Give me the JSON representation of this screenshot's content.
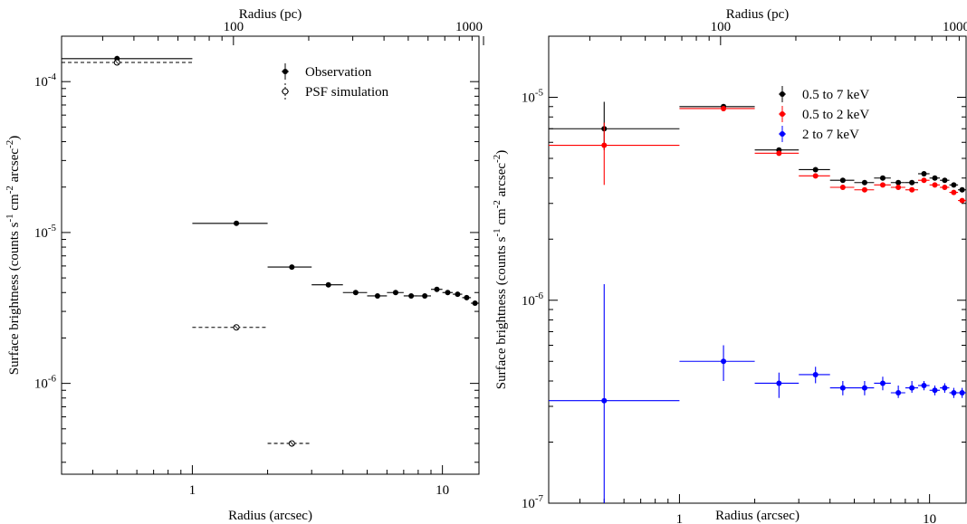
{
  "chart_data": [
    {
      "type": "scatter",
      "xscale": "log",
      "yscale": "log",
      "xlim": [
        0.3,
        14
      ],
      "ylim": [
        2.5e-07,
        0.0002
      ],
      "xlabel": "Radius (arcsec)",
      "ylabel": "Surface brightness (counts s",
      "ylabel_parts": [
        "Surface brightness (counts s",
        "-1",
        " cm",
        "-2",
        " arcsec",
        "-2",
        ")"
      ],
      "top_xlabel": "Radius (pc)",
      "x_ticks": [
        {
          "value": 1,
          "label": "1"
        },
        {
          "value": 10,
          "label": "10"
        }
      ],
      "y_ticks": [
        {
          "value": 1e-06,
          "mant": "10",
          "exp": "-6"
        },
        {
          "value": 1e-05,
          "mant": "10",
          "exp": "-5"
        },
        {
          "value": 0.0001,
          "mant": "10",
          "exp": "-4"
        }
      ],
      "top_ticks": [
        {
          "arcsec": 1.46,
          "label": "100"
        },
        {
          "arcsec": 14.6,
          "label": "1000"
        }
      ],
      "legend_position": "top-right",
      "series": [
        {
          "name": "Observation",
          "color": "#000000",
          "marker": "filled",
          "dashed": false,
          "points": [
            {
              "x": 0.5,
              "xlo": 0.0,
              "xhi": 1.0,
              "y": 0.000142,
              "ylo": 0.000136,
              "yhi": 0.000148
            },
            {
              "x": 1.5,
              "xlo": 1.0,
              "xhi": 2.0,
              "y": 1.15e-05
            },
            {
              "x": 2.5,
              "xlo": 2.0,
              "xhi": 3.0,
              "y": 5.9e-06
            },
            {
              "x": 3.5,
              "xlo": 3.0,
              "xhi": 4.0,
              "y": 4.5e-06
            },
            {
              "x": 4.5,
              "xlo": 4.0,
              "xhi": 5.0,
              "y": 4e-06
            },
            {
              "x": 5.5,
              "xlo": 5.0,
              "xhi": 6.0,
              "y": 3.8e-06
            },
            {
              "x": 6.5,
              "xlo": 6.0,
              "xhi": 7.0,
              "y": 4e-06
            },
            {
              "x": 7.5,
              "xlo": 7.0,
              "xhi": 8.0,
              "y": 3.8e-06
            },
            {
              "x": 8.5,
              "xlo": 8.0,
              "xhi": 9.0,
              "y": 3.8e-06
            },
            {
              "x": 9.5,
              "xlo": 9.0,
              "xhi": 10.0,
              "y": 4.2e-06
            },
            {
              "x": 10.5,
              "xlo": 10.0,
              "xhi": 11.0,
              "y": 4e-06
            },
            {
              "x": 11.5,
              "xlo": 11.0,
              "xhi": 12.0,
              "y": 3.9e-06
            },
            {
              "x": 12.5,
              "xlo": 12.0,
              "xhi": 13.0,
              "y": 3.7e-06
            },
            {
              "x": 13.5,
              "xlo": 13.0,
              "xhi": 14.0,
              "y": 3.4e-06
            }
          ]
        },
        {
          "name": "PSF simulation",
          "color": "#000000",
          "marker": "open",
          "dashed": true,
          "points": [
            {
              "x": 0.5,
              "xlo": 0.0,
              "xhi": 1.0,
              "y": 0.000134,
              "ylo": 0.000128,
              "yhi": 0.00014
            },
            {
              "x": 1.5,
              "xlo": 1.0,
              "xhi": 2.0,
              "y": 2.35e-06,
              "ylo": 2.28e-06,
              "yhi": 2.42e-06
            },
            {
              "x": 2.5,
              "xlo": 2.0,
              "xhi": 3.0,
              "y": 4e-07,
              "ylo": 3.8e-07,
              "yhi": 4.2e-07
            }
          ]
        }
      ]
    },
    {
      "type": "scatter",
      "xscale": "log",
      "yscale": "log",
      "xlim": [
        0.3,
        14
      ],
      "ylim": [
        1e-07,
        2e-05
      ],
      "xlabel": "Radius (arcsec)",
      "ylabel": "Surface brightness (counts s",
      "ylabel_parts": [
        "Surface brightness (counts s",
        "-1",
        " cm",
        "-2",
        " arcsec",
        "-2",
        ")"
      ],
      "top_xlabel": "Radius (pc)",
      "x_ticks": [
        {
          "value": 1,
          "label": "1"
        },
        {
          "value": 10,
          "label": "10"
        }
      ],
      "y_ticks": [
        {
          "value": 1e-07,
          "mant": "10",
          "exp": "-7"
        },
        {
          "value": 1e-06,
          "mant": "10",
          "exp": "-6"
        },
        {
          "value": 1e-05,
          "mant": "10",
          "exp": "-5"
        }
      ],
      "top_ticks": [
        {
          "arcsec": 1.46,
          "label": "100"
        },
        {
          "arcsec": 14.6,
          "label": "1000"
        }
      ],
      "legend_position": "top-right",
      "series": [
        {
          "name": "0.5 to 7 keV",
          "color": "#000000",
          "marker": "filled",
          "dashed": false,
          "points": [
            {
              "x": 0.5,
              "xlo": 0.0,
              "xhi": 1.0,
              "y": 7e-06,
              "ylo": 5.5e-06,
              "yhi": 9.5e-06
            },
            {
              "x": 1.5,
              "xlo": 1.0,
              "xhi": 2.0,
              "y": 9e-06
            },
            {
              "x": 2.5,
              "xlo": 2.0,
              "xhi": 3.0,
              "y": 5.5e-06
            },
            {
              "x": 3.5,
              "xlo": 3.0,
              "xhi": 4.0,
              "y": 4.4e-06
            },
            {
              "x": 4.5,
              "xlo": 4.0,
              "xhi": 5.0,
              "y": 3.9e-06
            },
            {
              "x": 5.5,
              "xlo": 5.0,
              "xhi": 6.0,
              "y": 3.8e-06
            },
            {
              "x": 6.5,
              "xlo": 6.0,
              "xhi": 7.0,
              "y": 4e-06
            },
            {
              "x": 7.5,
              "xlo": 7.0,
              "xhi": 8.0,
              "y": 3.8e-06
            },
            {
              "x": 8.5,
              "xlo": 8.0,
              "xhi": 9.0,
              "y": 3.8e-06
            },
            {
              "x": 9.5,
              "xlo": 9.0,
              "xhi": 10.0,
              "y": 4.2e-06
            },
            {
              "x": 10.5,
              "xlo": 10.0,
              "xhi": 11.0,
              "y": 4e-06
            },
            {
              "x": 11.5,
              "xlo": 11.0,
              "xhi": 12.0,
              "y": 3.9e-06
            },
            {
              "x": 12.5,
              "xlo": 12.0,
              "xhi": 13.0,
              "y": 3.7e-06
            },
            {
              "x": 13.5,
              "xlo": 13.0,
              "xhi": 14.0,
              "y": 3.5e-06
            }
          ]
        },
        {
          "name": "0.5 to 2 keV",
          "color": "#ff0000",
          "marker": "filled",
          "dashed": false,
          "points": [
            {
              "x": 0.5,
              "xlo": 0.0,
              "xhi": 1.0,
              "y": 5.8e-06,
              "ylo": 3.7e-06,
              "yhi": 7.5e-06
            },
            {
              "x": 1.5,
              "xlo": 1.0,
              "xhi": 2.0,
              "y": 8.8e-06
            },
            {
              "x": 2.5,
              "xlo": 2.0,
              "xhi": 3.0,
              "y": 5.3e-06
            },
            {
              "x": 3.5,
              "xlo": 3.0,
              "xhi": 4.0,
              "y": 4.1e-06
            },
            {
              "x": 4.5,
              "xlo": 4.0,
              "xhi": 5.0,
              "y": 3.6e-06
            },
            {
              "x": 5.5,
              "xlo": 5.0,
              "xhi": 6.0,
              "y": 3.5e-06
            },
            {
              "x": 6.5,
              "xlo": 6.0,
              "xhi": 7.0,
              "y": 3.7e-06
            },
            {
              "x": 7.5,
              "xlo": 7.0,
              "xhi": 8.0,
              "y": 3.6e-06
            },
            {
              "x": 8.5,
              "xlo": 8.0,
              "xhi": 9.0,
              "y": 3.5e-06
            },
            {
              "x": 9.5,
              "xlo": 9.0,
              "xhi": 10.0,
              "y": 3.9e-06
            },
            {
              "x": 10.5,
              "xlo": 10.0,
              "xhi": 11.0,
              "y": 3.7e-06
            },
            {
              "x": 11.5,
              "xlo": 11.0,
              "xhi": 12.0,
              "y": 3.6e-06
            },
            {
              "x": 12.5,
              "xlo": 12.0,
              "xhi": 13.0,
              "y": 3.4e-06
            },
            {
              "x": 13.5,
              "xlo": 13.0,
              "xhi": 14.0,
              "y": 3.1e-06
            }
          ]
        },
        {
          "name": "2 to 7 keV",
          "color": "#0000ff",
          "marker": "filled",
          "dashed": false,
          "points": [
            {
              "x": 0.5,
              "xlo": 0.0,
              "xhi": 1.0,
              "y": 3.2e-07,
              "ylo": 1e-07,
              "yhi": 1.2e-06
            },
            {
              "x": 1.5,
              "xlo": 1.0,
              "xhi": 2.0,
              "y": 5e-07,
              "ylo": 4e-07,
              "yhi": 6e-07
            },
            {
              "x": 2.5,
              "xlo": 2.0,
              "xhi": 3.0,
              "y": 3.9e-07,
              "ylo": 3.3e-07,
              "yhi": 4.4e-07
            },
            {
              "x": 3.5,
              "xlo": 3.0,
              "xhi": 4.0,
              "y": 4.3e-07,
              "ylo": 3.9e-07,
              "yhi": 4.7e-07
            },
            {
              "x": 4.5,
              "xlo": 4.0,
              "xhi": 5.0,
              "y": 3.7e-07,
              "ylo": 3.4e-07,
              "yhi": 4e-07
            },
            {
              "x": 5.5,
              "xlo": 5.0,
              "xhi": 6.0,
              "y": 3.7e-07,
              "ylo": 3.4e-07,
              "yhi": 4e-07
            },
            {
              "x": 6.5,
              "xlo": 6.0,
              "xhi": 7.0,
              "y": 3.9e-07,
              "ylo": 3.6e-07,
              "yhi": 4.2e-07
            },
            {
              "x": 7.5,
              "xlo": 7.0,
              "xhi": 8.0,
              "y": 3.5e-07,
              "ylo": 3.3e-07,
              "yhi": 3.8e-07
            },
            {
              "x": 8.5,
              "xlo": 8.0,
              "xhi": 9.0,
              "y": 3.7e-07,
              "ylo": 3.5e-07,
              "yhi": 4e-07
            },
            {
              "x": 9.5,
              "xlo": 9.0,
              "xhi": 10.0,
              "y": 3.8e-07,
              "ylo": 3.6e-07,
              "yhi": 4e-07
            },
            {
              "x": 10.5,
              "xlo": 10.0,
              "xhi": 11.0,
              "y": 3.6e-07,
              "ylo": 3.4e-07,
              "yhi": 3.8e-07
            },
            {
              "x": 11.5,
              "xlo": 11.0,
              "xhi": 12.0,
              "y": 3.7e-07,
              "ylo": 3.5e-07,
              "yhi": 3.9e-07
            },
            {
              "x": 12.5,
              "xlo": 12.0,
              "xhi": 13.0,
              "y": 3.5e-07,
              "ylo": 3.3e-07,
              "yhi": 3.7e-07
            },
            {
              "x": 13.5,
              "xlo": 13.0,
              "xhi": 14.0,
              "y": 3.5e-07,
              "ylo": 3.3e-07,
              "yhi": 3.7e-07
            }
          ]
        }
      ]
    }
  ]
}
